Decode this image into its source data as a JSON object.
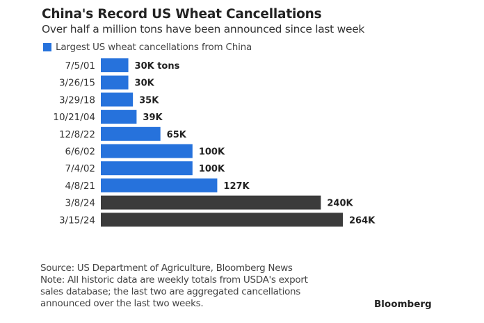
{
  "chart_data": {
    "type": "bar",
    "orientation": "horizontal",
    "title": "China's Record US Wheat Cancellations",
    "subtitle": "Over half a million tons have been announced since last week",
    "legend": "Largest US wheat cancellations from China",
    "unit": "thousand tons",
    "categories": [
      "7/5/01",
      "3/26/15",
      "3/29/18",
      "10/21/04",
      "12/8/22",
      "6/6/02",
      "7/4/02",
      "4/8/21",
      "3/8/24",
      "3/15/24"
    ],
    "values": [
      30,
      30,
      35,
      39,
      65,
      100,
      100,
      127,
      240,
      264
    ],
    "labels": [
      "30K tons",
      "30K",
      "35K",
      "39K",
      "65K",
      "100K",
      "100K",
      "127K",
      "240K",
      "264K"
    ],
    "highlight": [
      false,
      false,
      false,
      false,
      false,
      false,
      false,
      false,
      true,
      true
    ],
    "colors": {
      "primary": "#2672dc",
      "highlight": "#3b3b3b"
    },
    "xlim": [
      0,
      264
    ]
  },
  "footer": {
    "source": "Source: US Department of Agriculture, Bloomberg News",
    "note_lines": [
      "Note: All historic data are weekly totals from USDA's export",
      "sales database; the last two are aggregated cancellations",
      "announced over the last two weeks."
    ],
    "brand": "Bloomberg"
  }
}
